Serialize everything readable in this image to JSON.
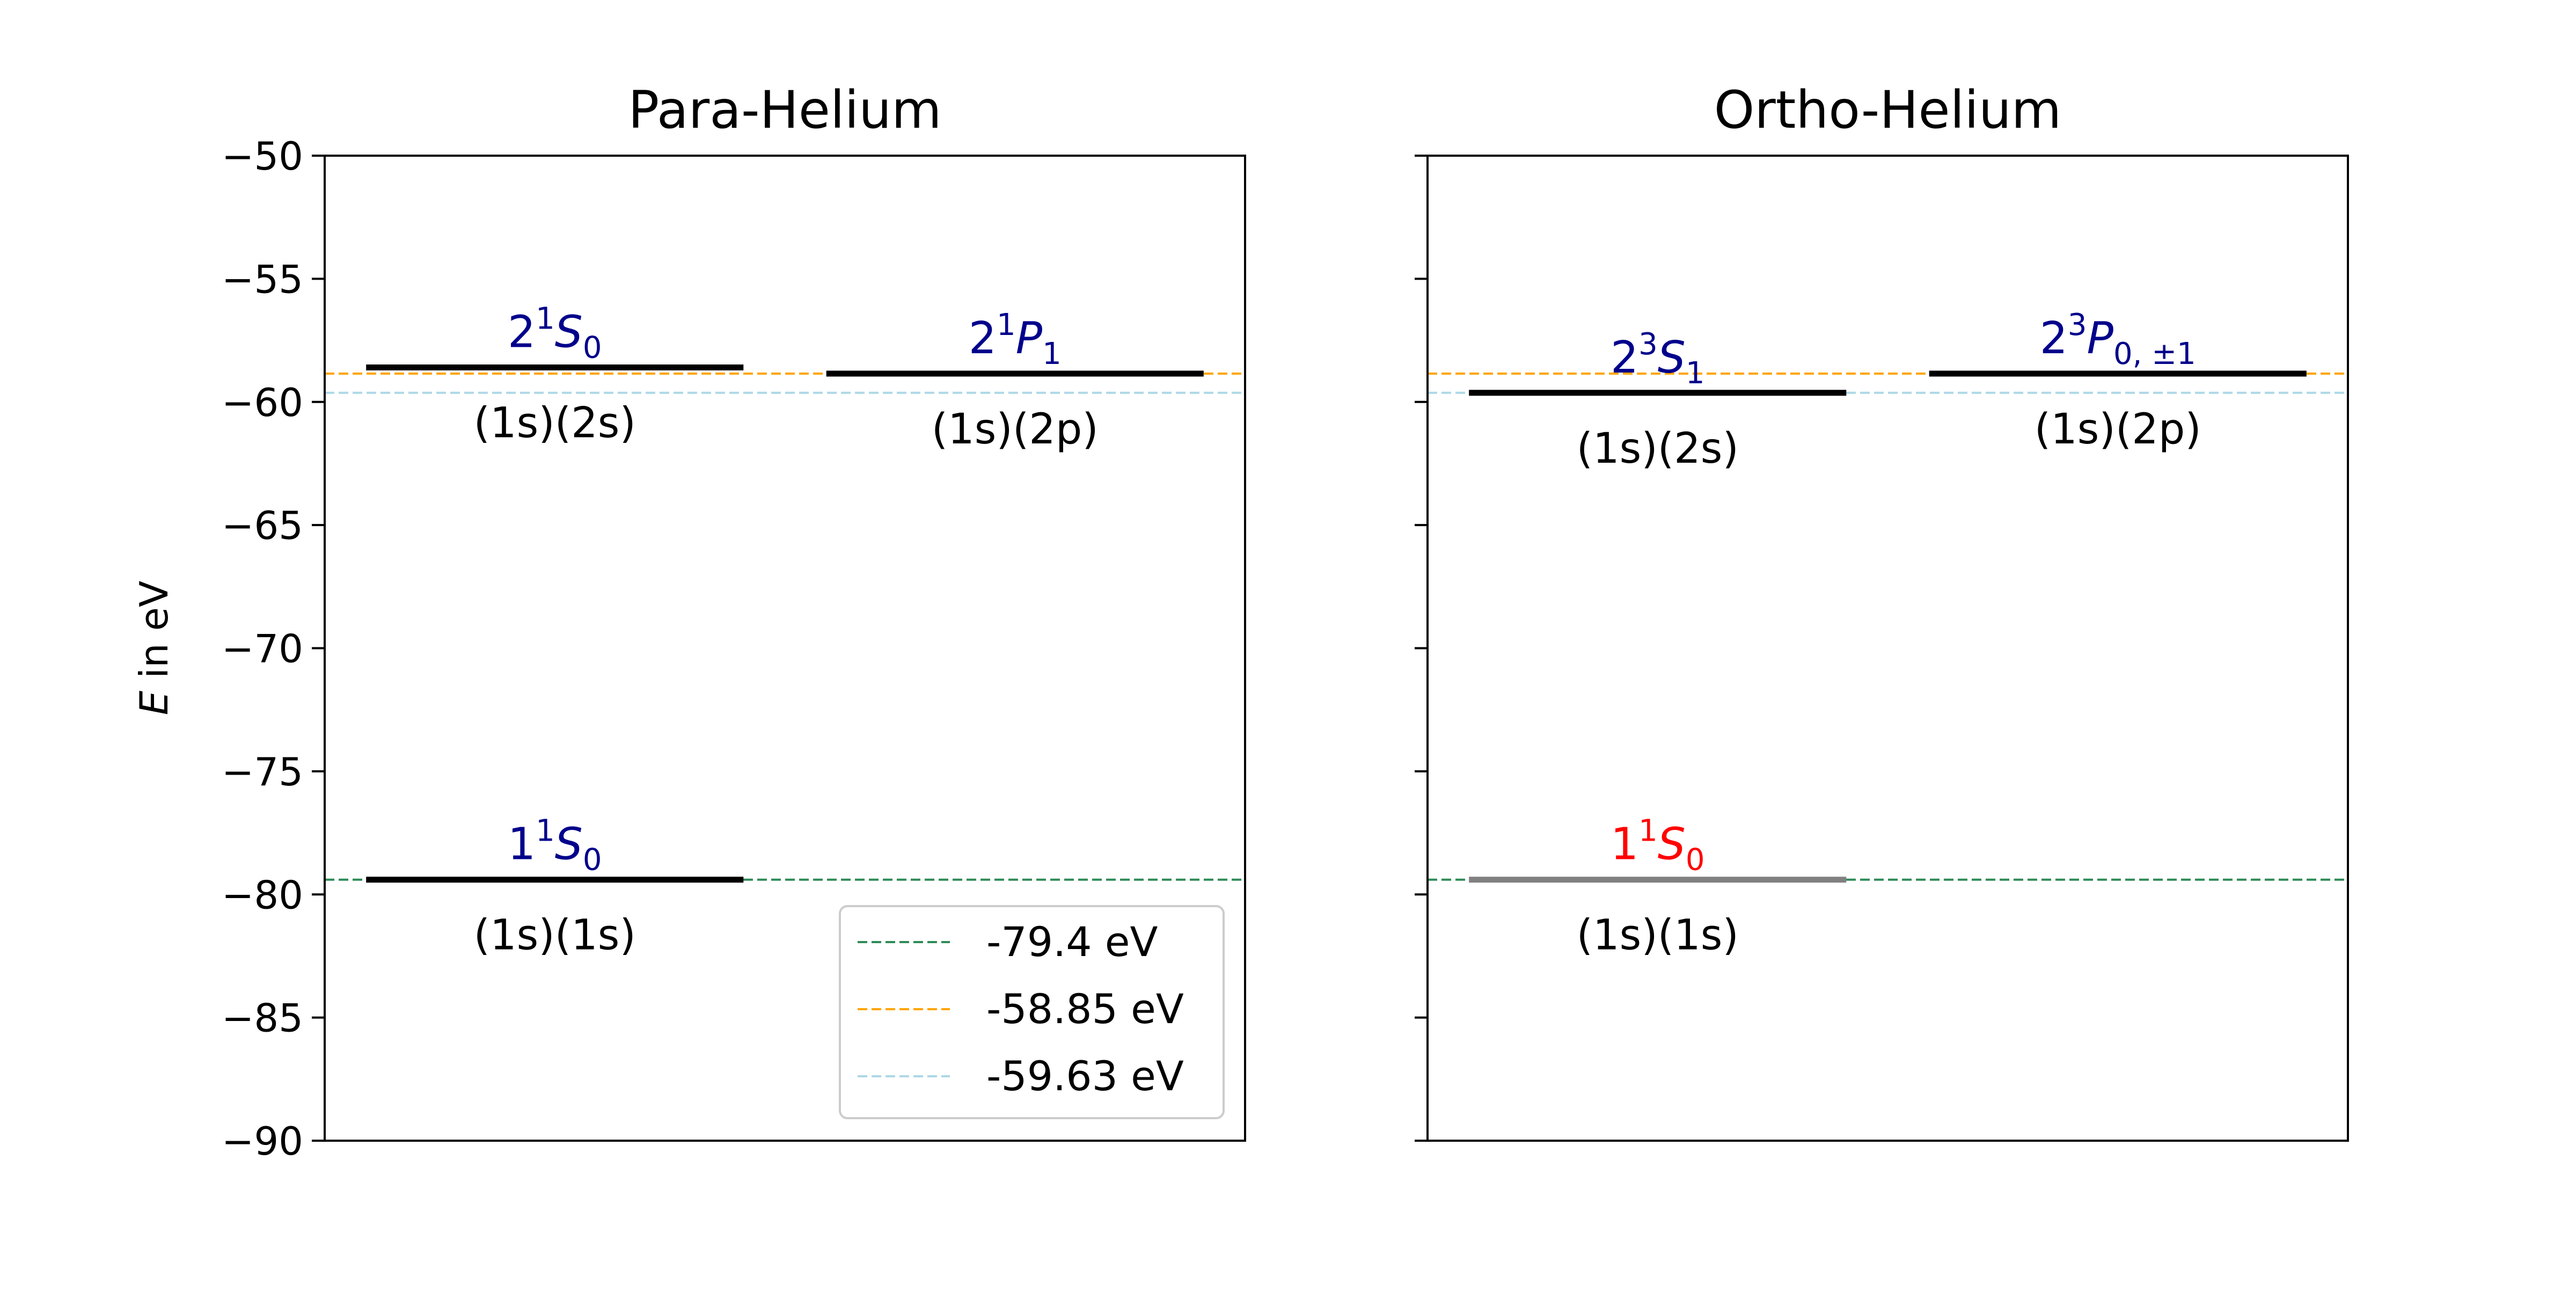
{
  "chart_data": {
    "type": "energy-level-diagram",
    "ylabel_symbol": "E",
    "ylabel_unit": "in eV",
    "ylim": [
      -90,
      -50
    ],
    "yticks": [
      -50,
      -55,
      -60,
      -65,
      -70,
      -75,
      -80,
      -85,
      -90
    ],
    "ytick_labels": [
      "−50",
      "−55",
      "−60",
      "−65",
      "−70",
      "−75",
      "−80",
      "−85",
      "−90"
    ],
    "reference_lines": [
      {
        "value": -79.4,
        "label": "-79.4 eV",
        "color": "#2e8b57"
      },
      {
        "value": -58.85,
        "label": "-58.85 eV",
        "color": "#ffa500"
      },
      {
        "value": -59.63,
        "label": "-59.63 eV",
        "color": "#add8e6"
      }
    ],
    "legend_position": "lower-right of first panel",
    "panels": [
      {
        "title": "Para-Helium",
        "levels": [
          {
            "energy": -58.6,
            "slot": 0,
            "term_n": "2",
            "term_mult": "1",
            "term_L": "S",
            "term_J": "0",
            "config": "(1s)(2s)",
            "term_color": "#00008b",
            "line_color": "#000000"
          },
          {
            "energy": -58.85,
            "slot": 1,
            "term_n": "2",
            "term_mult": "1",
            "term_L": "P",
            "term_J": "1",
            "config": "(1s)(2p)",
            "term_color": "#00008b",
            "line_color": "#000000"
          },
          {
            "energy": -79.4,
            "slot": 0,
            "term_n": "1",
            "term_mult": "1",
            "term_L": "S",
            "term_J": "0",
            "config": "(1s)(1s)",
            "term_color": "#00008b",
            "line_color": "#000000"
          }
        ]
      },
      {
        "title": "Ortho-Helium",
        "levels": [
          {
            "energy": -59.63,
            "slot": 0,
            "term_n": "2",
            "term_mult": "3",
            "term_L": "S",
            "term_J": "1",
            "config": "(1s)(2s)",
            "term_color": "#00008b",
            "line_color": "#000000"
          },
          {
            "energy": -58.85,
            "slot": 1,
            "term_n": "2",
            "term_mult": "3",
            "term_L": "P",
            "term_J": "0, ±1",
            "config": "(1s)(2p)",
            "term_color": "#00008b",
            "line_color": "#000000"
          },
          {
            "energy": -79.4,
            "slot": 0,
            "term_n": "1",
            "term_mult": "1",
            "term_L": "S",
            "term_J": "0",
            "config": "(1s)(1s)",
            "term_color": "#ff0000",
            "line_color": "#808080"
          }
        ]
      }
    ]
  }
}
